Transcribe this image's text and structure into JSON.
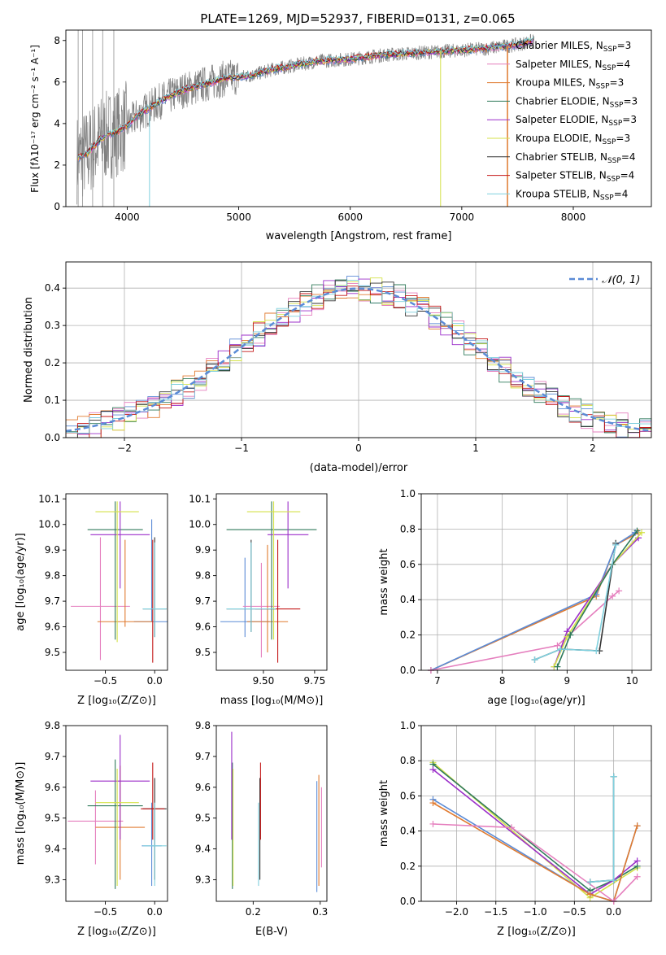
{
  "title": "PLATE=1269, MJD=52937, FIBERID=0131, z=0.065",
  "colors": {
    "chabrier_miles": "#5b8bd6",
    "salpeter_miles": "#e57fbe",
    "kroupa_miles": "#e07b30",
    "chabrier_elodie": "#2f7a5a",
    "salpeter_elodie": "#9b2fc9",
    "kroupa_elodie": "#d4e24a",
    "chabrier_stelib": "#333333",
    "salpeter_stelib": "#c41818",
    "kroupa_stelib": "#7fd0de",
    "data": "#808080"
  },
  "legend_spectrum": [
    {
      "pre": "Chabrier MILES, N",
      "sub": "SSP",
      "post": "=3",
      "color": "#5b8bd6"
    },
    {
      "pre": "Salpeter MILES, N",
      "sub": "SSP",
      "post": "=4",
      "color": "#e57fbe"
    },
    {
      "pre": "Kroupa MILES, N",
      "sub": "SSP",
      "post": "=3",
      "color": "#e07b30"
    },
    {
      "pre": "Chabrier ELODIE, N",
      "sub": "SSP",
      "post": "=3",
      "color": "#2f7a5a"
    },
    {
      "pre": "Salpeter ELODIE, N",
      "sub": "SSP",
      "post": "=3",
      "color": "#9b2fc9"
    },
    {
      "pre": "Kroupa ELODIE, N",
      "sub": "SSP",
      "post": "=3",
      "color": "#d4e24a"
    },
    {
      "pre": "Chabrier STELIB, N",
      "sub": "SSP",
      "post": "=4",
      "color": "#333333"
    },
    {
      "pre": "Salpeter STELIB, N",
      "sub": "SSP",
      "post": "=4",
      "color": "#c41818"
    },
    {
      "pre": "Kroupa STELIB, N",
      "sub": "SSP",
      "post": "=4",
      "color": "#7fd0de"
    }
  ],
  "chart_data": [
    {
      "id": "spectrum",
      "type": "line",
      "xlabel": "wavelength [Angstrom, rest frame]",
      "ylabel": "Flux [fλ10⁻¹⁷ erg cm⁻² s⁻¹ A⁻¹]",
      "xlim": [
        3450,
        8700
      ],
      "ylim": [
        0,
        8.5
      ],
      "xticks": [
        4000,
        5000,
        6000,
        7000,
        8000
      ],
      "yticks": [
        0,
        2,
        4,
        6,
        8
      ],
      "model_x": [
        3550,
        3650,
        3750,
        3850,
        3950,
        4100,
        4300,
        4500,
        4700,
        4900,
        5100,
        5300,
        5500,
        5700,
        6000,
        6300,
        6600,
        6900,
        7200,
        7500,
        7650
      ],
      "model_y": [
        2.3,
        2.6,
        3.2,
        3.5,
        3.7,
        4.4,
        5.1,
        5.6,
        5.9,
        6.2,
        6.3,
        6.6,
        6.8,
        7.0,
        7.1,
        7.3,
        7.4,
        7.5,
        7.6,
        7.8,
        8.0
      ]
    },
    {
      "id": "residuals",
      "type": "histogram",
      "xlabel": "(data-model)/error",
      "ylabel": "Normed distribution",
      "xlim": [
        -2.5,
        2.5
      ],
      "ylim": [
        0,
        0.47
      ],
      "xticks": [
        -2,
        -1,
        0,
        1,
        2
      ],
      "yticks": [
        0.0,
        0.1,
        0.2,
        0.3,
        0.4
      ],
      "legend": "𝒩(0, 1)"
    },
    {
      "id": "age_vs_Z",
      "type": "errorbar",
      "xlabel": "Z [log₁₀(Z/Z⊙)]",
      "ylabel": "age [log₁₀(age/yr)]",
      "xlim": [
        -0.9,
        0.13
      ],
      "ylim": [
        9.43,
        10.12
      ],
      "xticks": [
        -0.5,
        0.0
      ],
      "yticks": [
        9.5,
        9.6,
        9.7,
        9.8,
        9.9,
        10.0,
        10.1
      ],
      "points": [
        {
          "c": "#5b8bd6",
          "x": -0.03,
          "xe": 0.18,
          "y": 9.62,
          "ye": 0.0,
          "yl": 9.62,
          "yh": 10.02
        },
        {
          "c": "#e57fbe",
          "x": -0.55,
          "xe": 0.3,
          "y": 9.68,
          "ye": 0.0,
          "yl": 9.47,
          "yh": 9.95
        },
        {
          "c": "#e07b30",
          "x": -0.3,
          "xe": 0.28,
          "y": 9.62,
          "ye": 0.0,
          "yl": 9.6,
          "yh": 9.94
        },
        {
          "c": "#2f7a5a",
          "x": -0.4,
          "xe": 0.28,
          "y": 9.98,
          "ye": 0.0,
          "yl": 9.55,
          "yh": 10.09
        },
        {
          "c": "#9b2fc9",
          "x": -0.35,
          "xe": 0.3,
          "y": 9.96,
          "ye": 0.0,
          "yl": 9.75,
          "yh": 10.09
        },
        {
          "c": "#d4e24a",
          "x": -0.38,
          "xe": 0.22,
          "y": 10.05,
          "ye": 0.0,
          "yl": 9.54,
          "yh": 10.09
        },
        {
          "c": "#333333",
          "x": 0.0,
          "xe": 0.12,
          "y": 9.67,
          "ye": 0.0,
          "yl": 9.56,
          "yh": 9.95
        },
        {
          "c": "#c41818",
          "x": -0.02,
          "xe": 0.0,
          "y": 9.62,
          "ye": 0.0,
          "yl": 9.46,
          "yh": 9.94
        },
        {
          "c": "#7fd0de",
          "x": 0.0,
          "xe": 0.12,
          "y": 9.67,
          "ye": 0.0,
          "yl": 9.56,
          "yh": 9.93
        }
      ]
    },
    {
      "id": "age_vs_mass",
      "type": "errorbar",
      "xlabel": "mass [log₁₀(M/M⊙)]",
      "xlim": [
        9.27,
        9.81
      ],
      "ylim": [
        9.43,
        10.12
      ],
      "xticks": [
        9.25,
        9.5,
        9.75
      ],
      "yticks": [
        9.5,
        9.6,
        9.7,
        9.8,
        9.9,
        10.0,
        10.1
      ],
      "points": [
        {
          "c": "#5b8bd6",
          "x": 9.41,
          "xe": 0.12,
          "y": 9.62,
          "yl": 9.56,
          "yh": 9.87
        },
        {
          "c": "#e57fbe",
          "x": 9.49,
          "xe": 0.09,
          "y": 9.68,
          "yl": 9.48,
          "yh": 9.85
        },
        {
          "c": "#e07b30",
          "x": 9.52,
          "xe": 0.1,
          "y": 9.62,
          "yl": 9.5,
          "yh": 9.92
        },
        {
          "c": "#2f7a5a",
          "x": 9.54,
          "xe": 0.22,
          "y": 9.98,
          "yl": 9.55,
          "yh": 10.09
        },
        {
          "c": "#9b2fc9",
          "x": 9.62,
          "xe": 0.1,
          "y": 9.96,
          "yl": 9.75,
          "yh": 10.09
        },
        {
          "c": "#d4e24a",
          "x": 9.55,
          "xe": 0.13,
          "y": 10.05,
          "yl": 9.55,
          "yh": 10.09
        },
        {
          "c": "#333333",
          "x": 9.44,
          "xe": 0.12,
          "y": 9.67,
          "yl": 9.58,
          "yh": 9.94
        },
        {
          "c": "#c41818",
          "x": 9.57,
          "xe": 0.11,
          "y": 9.67,
          "yl": 9.46,
          "yh": 9.94
        },
        {
          "c": "#7fd0de",
          "x": 9.44,
          "xe": 0.12,
          "y": 9.67,
          "yl": 9.58,
          "yh": 9.93
        }
      ]
    },
    {
      "id": "mw_vs_age",
      "type": "line",
      "xlabel": "age [log₁₀(age/yr)]",
      "ylabel": "mass weight",
      "xlim": [
        6.75,
        10.3
      ],
      "ylim": [
        0,
        1
      ],
      "xticks": [
        7,
        8,
        9,
        10
      ],
      "yticks": [
        0.0,
        0.2,
        0.4,
        0.6,
        0.8,
        1.0
      ],
      "series": [
        {
          "c": "#e07b30",
          "x": [
            6.9,
            9.45,
            9.75,
            10.1
          ],
          "y": [
            0.0,
            0.42,
            0.71,
            0.78
          ]
        },
        {
          "c": "#5b8bd6",
          "x": [
            6.9,
            9.45,
            9.75,
            10.05
          ],
          "y": [
            0.0,
            0.43,
            0.71,
            0.78
          ]
        },
        {
          "c": "#e57fbe",
          "x": [
            6.9,
            8.85,
            9.7,
            9.8
          ],
          "y": [
            0.0,
            0.14,
            0.42,
            0.45
          ]
        },
        {
          "c": "#9b2fc9",
          "x": [
            8.8,
            9.0,
            9.7,
            10.1
          ],
          "y": [
            0.02,
            0.22,
            0.6,
            0.75
          ]
        },
        {
          "c": "#d4e24a",
          "x": [
            8.8,
            9.0,
            9.7,
            10.15
          ],
          "y": [
            0.02,
            0.19,
            0.6,
            0.78
          ]
        },
        {
          "c": "#2f7a5a",
          "x": [
            8.85,
            9.05,
            9.7,
            10.08
          ],
          "y": [
            0.02,
            0.2,
            0.6,
            0.79
          ]
        },
        {
          "c": "#333333",
          "x": [
            8.5,
            8.9,
            9.5,
            9.75
          ],
          "y": [
            0.06,
            0.12,
            0.11,
            0.72
          ]
        },
        {
          "c": "#7fd0de",
          "x": [
            8.5,
            8.9,
            9.45,
            9.75
          ],
          "y": [
            0.06,
            0.12,
            0.11,
            0.71
          ]
        }
      ]
    },
    {
      "id": "mass_vs_Z",
      "type": "errorbar",
      "xlabel": "Z [log₁₀(Z/Z⊙)]",
      "ylabel": "mass [log₁₀(M/M⊙)]",
      "xlim": [
        -0.9,
        0.13
      ],
      "ylim": [
        9.23,
        9.8
      ],
      "xticks": [
        -0.5,
        0.0
      ],
      "yticks": [
        9.3,
        9.4,
        9.5,
        9.6,
        9.7,
        9.8
      ],
      "points": [
        {
          "c": "#5b8bd6",
          "x": -0.03,
          "xe": 0.1,
          "y": 9.41,
          "yl": 9.28,
          "yh": 9.55
        },
        {
          "c": "#e57fbe",
          "x": -0.6,
          "xe": 0.28,
          "y": 9.49,
          "yl": 9.35,
          "yh": 9.59
        },
        {
          "c": "#e07b30",
          "x": -0.35,
          "xe": 0.25,
          "y": 9.47,
          "yl": 9.3,
          "yh": 9.67
        },
        {
          "c": "#2f7a5a",
          "x": -0.4,
          "xe": 0.28,
          "y": 9.54,
          "yl": 9.27,
          "yh": 9.69
        },
        {
          "c": "#9b2fc9",
          "x": -0.35,
          "xe": 0.3,
          "y": 9.62,
          "yl": 9.43,
          "yh": 9.77
        },
        {
          "c": "#d4e24a",
          "x": -0.38,
          "xe": 0.22,
          "y": 9.55,
          "yl": 9.28,
          "yh": 9.66
        },
        {
          "c": "#333333",
          "x": 0.0,
          "xe": 0.12,
          "y": 9.53,
          "yl": 9.3,
          "yh": 9.63
        },
        {
          "c": "#c41818",
          "x": -0.02,
          "xe": 0.12,
          "y": 9.53,
          "yl": 9.43,
          "yh": 9.68
        },
        {
          "c": "#7fd0de",
          "x": 0.0,
          "xe": 0.12,
          "y": 9.41,
          "yl": 9.28,
          "yh": 9.55
        }
      ]
    },
    {
      "id": "mass_vs_ebv",
      "type": "errorbar",
      "xlabel": "E(B-V)",
      "xlim": [
        0.145,
        0.31
      ],
      "ylim": [
        9.23,
        9.8
      ],
      "xticks": [
        0.2,
        0.3
      ],
      "yticks": [
        9.3,
        9.4,
        9.5,
        9.6,
        9.7,
        9.8
      ],
      "points": [
        {
          "c": "#5b8bd6",
          "x": 0.295,
          "y": 9.41,
          "yl": 9.26,
          "yh": 9.62
        },
        {
          "c": "#e57fbe",
          "x": 0.302,
          "y": 9.49,
          "yl": 9.34,
          "yh": 9.6
        },
        {
          "c": "#e07b30",
          "x": 0.298,
          "y": 9.47,
          "yl": 9.28,
          "yh": 9.64
        },
        {
          "c": "#2f7a5a",
          "x": 0.169,
          "y": 9.54,
          "yl": 9.27,
          "yh": 9.68
        },
        {
          "c": "#9b2fc9",
          "x": 0.168,
          "y": 9.62,
          "yl": 9.43,
          "yh": 9.78
        },
        {
          "c": "#d4e24a",
          "x": 0.17,
          "y": 9.55,
          "yl": 9.28,
          "yh": 9.66
        },
        {
          "c": "#333333",
          "x": 0.21,
          "y": 9.53,
          "yl": 9.3,
          "yh": 9.63
        },
        {
          "c": "#c41818",
          "x": 0.211,
          "y": 9.53,
          "yl": 9.43,
          "yh": 9.68
        },
        {
          "c": "#7fd0de",
          "x": 0.208,
          "y": 9.41,
          "yl": 9.28,
          "yh": 9.55
        }
      ]
    },
    {
      "id": "mw_vs_Z",
      "type": "line",
      "xlabel": "Z [log₁₀(Z/Z⊙)]",
      "ylabel": "mass weight",
      "xlim": [
        -2.45,
        0.48
      ],
      "ylim": [
        0,
        1
      ],
      "xticks": [
        -2.0,
        -1.5,
        -1.0,
        -0.5,
        0.0
      ],
      "yticks": [
        0.0,
        0.2,
        0.4,
        0.6,
        0.8,
        1.0
      ],
      "series": [
        {
          "c": "#d4e24a",
          "x": [
            -2.3,
            -0.3,
            0.3
          ],
          "y": [
            0.79,
            0.02,
            0.19
          ]
        },
        {
          "c": "#2f7a5a",
          "x": [
            -2.3,
            -0.3,
            0.0,
            0.3
          ],
          "y": [
            0.78,
            0.06,
            0.12,
            0.2
          ]
        },
        {
          "c": "#9b2fc9",
          "x": [
            -2.3,
            -0.3,
            0.0,
            0.3
          ],
          "y": [
            0.75,
            0.04,
            0.12,
            0.23
          ]
        },
        {
          "c": "#5b8bd6",
          "x": [
            -2.3,
            -0.3,
            0.0,
            0.3
          ],
          "y": [
            0.58,
            0.04,
            0.0,
            0.43
          ]
        },
        {
          "c": "#e07b30",
          "x": [
            -2.3,
            -0.3,
            0.0,
            0.3
          ],
          "y": [
            0.56,
            0.04,
            0.0,
            0.43
          ]
        },
        {
          "c": "#e57fbe",
          "x": [
            -2.3,
            -1.3,
            0.0,
            0.3
          ],
          "y": [
            0.44,
            0.42,
            0.0,
            0.14
          ]
        },
        {
          "c": "#333333",
          "x": [
            -0.3,
            0.0,
            0.0
          ],
          "y": [
            0.11,
            0.12,
            0.71
          ]
        },
        {
          "c": "#7fd0de",
          "x": [
            -0.3,
            0.0,
            0.0
          ],
          "y": [
            0.11,
            0.12,
            0.71
          ]
        }
      ]
    }
  ]
}
